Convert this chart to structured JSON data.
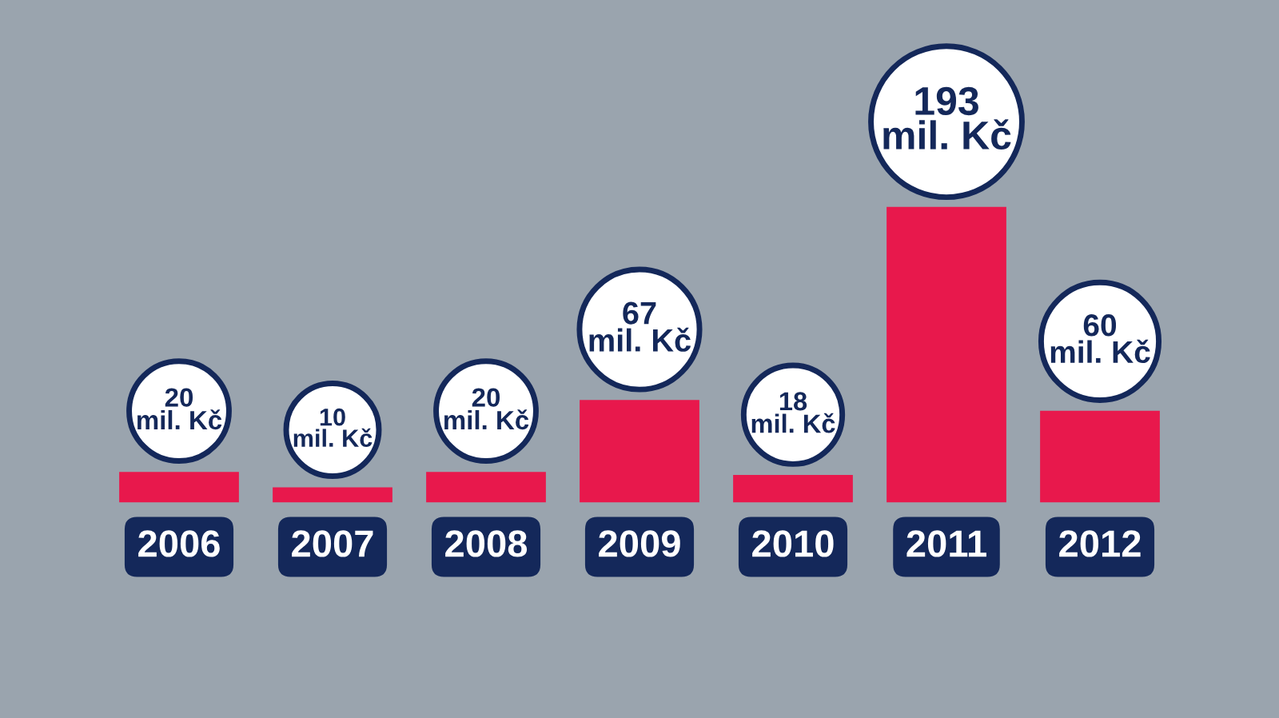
{
  "chart_data": {
    "type": "bar",
    "categories": [
      "2006",
      "2007",
      "2008",
      "2009",
      "2010",
      "2011",
      "2012"
    ],
    "values": [
      20,
      10,
      20,
      67,
      18,
      193,
      60
    ],
    "color": "#e8184c",
    "value_labels": [
      "20\nmil. Kč",
      "10\nmil. Kč",
      "20\nmil. Kč",
      "67\nmil. Kč",
      "18\nmil. Kč",
      "193\nmil. Kč",
      "60\nmil. Kč"
    ],
    "grid": false,
    "legend": false
  }
}
